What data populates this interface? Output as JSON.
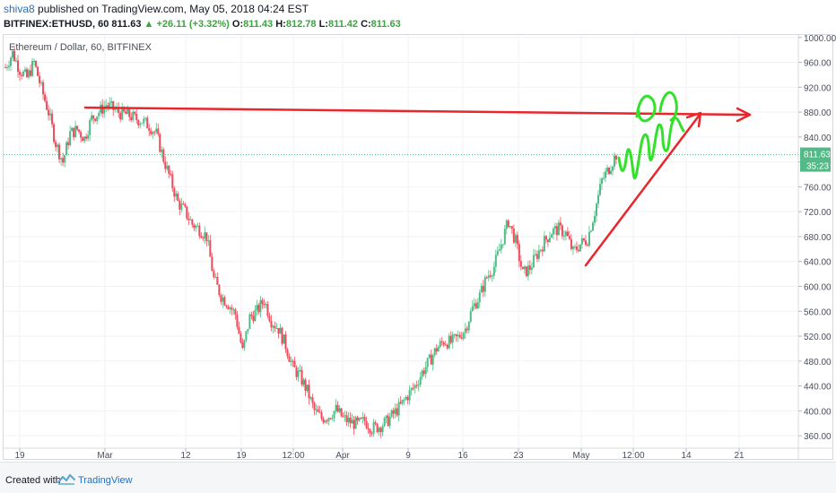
{
  "header": {
    "user": "shiva8",
    "published_text": "published on TradingView.com, May 05, 2018 04:24 EST",
    "symbol": "BITFINEX:ETHUSD, 60",
    "last": "811.63",
    "change": "+26.11 (+3.32%)",
    "open_label": "O:",
    "open": "811.43",
    "high_label": "H:",
    "high": "812.78",
    "low_label": "L:",
    "low": "811.42",
    "close_label": "C:",
    "close": "811.63"
  },
  "footer": {
    "created_with": "Created with",
    "brand": "TradingView"
  },
  "chart_data": {
    "type": "candlestick",
    "title": "Ethereum / Dollar, 60, BITFINEX",
    "x_ticks": [
      "19",
      "Mar",
      "12",
      "19",
      "12:00",
      "Apr",
      "9",
      "16",
      "23",
      "May",
      "12:00",
      "14",
      "21"
    ],
    "y_ticks": [
      "1000.00",
      "960.00",
      "920.00",
      "880.00",
      "840.00",
      "800.00",
      "760.00",
      "720.00",
      "680.00",
      "640.00",
      "600.00",
      "560.00",
      "520.00",
      "480.00",
      "440.00",
      "400.00",
      "360.00"
    ],
    "ylim": [
      340,
      1004
    ],
    "last_price_label": "811.63",
    "countdown_label": "35:23",
    "last_price": 811.63,
    "price_path": [
      [
        0,
        952
      ],
      [
        2,
        975
      ],
      [
        4,
        948
      ],
      [
        6,
        935
      ],
      [
        8,
        960
      ],
      [
        10,
        918
      ],
      [
        12,
        880
      ],
      [
        14,
        830
      ],
      [
        16,
        800
      ],
      [
        18,
        846
      ],
      [
        20,
        852
      ],
      [
        22,
        838
      ],
      [
        24,
        870
      ],
      [
        26,
        880
      ],
      [
        28,
        892
      ],
      [
        30,
        885
      ],
      [
        32,
        878
      ],
      [
        34,
        876
      ],
      [
        36,
        870
      ],
      [
        38,
        866
      ],
      [
        40,
        858
      ],
      [
        42,
        845
      ],
      [
        44,
        805
      ],
      [
        46,
        770
      ],
      [
        48,
        735
      ],
      [
        50,
        720
      ],
      [
        52,
        700
      ],
      [
        54,
        692
      ],
      [
        56,
        680
      ],
      [
        58,
        612
      ],
      [
        60,
        585
      ],
      [
        62,
        572
      ],
      [
        64,
        555
      ],
      [
        66,
        495
      ],
      [
        68,
        550
      ],
      [
        70,
        560
      ],
      [
        72,
        578
      ],
      [
        74,
        545
      ],
      [
        76,
        532
      ],
      [
        78,
        505
      ],
      [
        80,
        470
      ],
      [
        82,
        455
      ],
      [
        84,
        432
      ],
      [
        86,
        400
      ],
      [
        88,
        388
      ],
      [
        90,
        392
      ],
      [
        92,
        402
      ],
      [
        94,
        388
      ],
      [
        96,
        382
      ],
      [
        98,
        378
      ],
      [
        100,
        384
      ],
      [
        102,
        372
      ],
      [
        104,
        375
      ],
      [
        106,
        382
      ],
      [
        108,
        395
      ],
      [
        110,
        408
      ],
      [
        112,
        425
      ],
      [
        114,
        440
      ],
      [
        116,
        462
      ],
      [
        118,
        480
      ],
      [
        120,
        500
      ],
      [
        122,
        512
      ],
      [
        124,
        510
      ],
      [
        126,
        518
      ],
      [
        128,
        532
      ],
      [
        130,
        565
      ],
      [
        132,
        585
      ],
      [
        134,
        615
      ],
      [
        136,
        632
      ],
      [
        138,
        668
      ],
      [
        140,
        705
      ],
      [
        142,
        672
      ],
      [
        144,
        620
      ],
      [
        146,
        630
      ],
      [
        148,
        652
      ],
      [
        150,
        672
      ],
      [
        152,
        688
      ],
      [
        154,
        692
      ],
      [
        156,
        685
      ],
      [
        158,
        655
      ],
      [
        160,
        668
      ],
      [
        162,
        676
      ],
      [
        164,
        720
      ],
      [
        166,
        770
      ],
      [
        168,
        790
      ],
      [
        170,
        812
      ]
    ],
    "annotations": [
      {
        "type": "line",
        "color": "#e8262b",
        "from": [
          28,
          893
        ],
        "to": [
          236,
          881
        ],
        "arrow": true,
        "label": "horizontal-resistance-arrow"
      },
      {
        "type": "line",
        "color": "#e8262b",
        "from": [
          155,
          628
        ],
        "to": [
          223,
          888
        ],
        "arrow": true,
        "label": "rising-support-arrow"
      },
      {
        "type": "scribble",
        "color": "#33e02a",
        "label": "projected-wave-scribble"
      }
    ]
  }
}
